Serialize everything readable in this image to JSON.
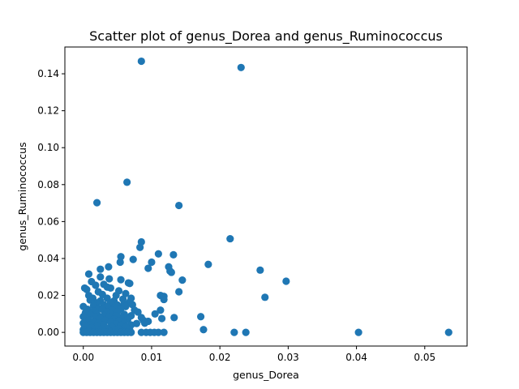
{
  "chart_data": {
    "type": "scatter",
    "title": "Scatter plot of genus_Dorea and genus_Ruminococcus",
    "xlabel": "genus_Dorea",
    "ylabel": "genus_Ruminococcus",
    "xlim": [
      -0.0027,
      0.0562
    ],
    "ylim": [
      -0.0074,
      0.1545
    ],
    "x_ticks": [
      0.0,
      0.01,
      0.02,
      0.03,
      0.04,
      0.05
    ],
    "x_tick_labels": [
      "0.00",
      "0.01",
      "0.02",
      "0.03",
      "0.04",
      "0.05"
    ],
    "y_ticks": [
      0.0,
      0.02,
      0.04,
      0.06,
      0.08,
      0.1,
      0.12,
      0.14
    ],
    "y_tick_labels": [
      "0.00",
      "0.02",
      "0.04",
      "0.06",
      "0.08",
      "0.10",
      "0.12",
      "0.14"
    ],
    "grid": false,
    "legend": "none",
    "marker_color": "#1f77b4",
    "points": [
      [
        0.0085,
        0.1468
      ],
      [
        0.0231,
        0.1434
      ],
      [
        0.0064,
        0.0813
      ],
      [
        0.002,
        0.0702
      ],
      [
        0.014,
        0.0687
      ],
      [
        0.0215,
        0.0507
      ],
      [
        0.0085,
        0.049
      ],
      [
        0.0083,
        0.046
      ],
      [
        0.011,
        0.0425
      ],
      [
        0.0132,
        0.042
      ],
      [
        0.0055,
        0.041
      ],
      [
        0.0073,
        0.0395
      ],
      [
        0.0054,
        0.038
      ],
      [
        0.01,
        0.038
      ],
      [
        0.0183,
        0.0368
      ],
      [
        0.0037,
        0.0355
      ],
      [
        0.0125,
        0.0355
      ],
      [
        0.0095,
        0.0347
      ],
      [
        0.0025,
        0.0342
      ],
      [
        0.0259,
        0.0337
      ],
      [
        0.0127,
        0.0332
      ],
      [
        0.0129,
        0.0325
      ],
      [
        0.0008,
        0.0316
      ],
      [
        0.0025,
        0.03
      ],
      [
        0.0038,
        0.029
      ],
      [
        0.0145,
        0.0283
      ],
      [
        0.0297,
        0.0277
      ],
      [
        0.0012,
        0.0275
      ],
      [
        0.0055,
        0.0285
      ],
      [
        0.0066,
        0.0268
      ],
      [
        0.0018,
        0.0255
      ],
      [
        0.003,
        0.026
      ],
      [
        0.0068,
        0.0265
      ],
      [
        0.0002,
        0.024
      ],
      [
        0.0035,
        0.0245
      ],
      [
        0.0005,
        0.0232
      ],
      [
        0.004,
        0.024
      ],
      [
        0.0052,
        0.0225
      ],
      [
        0.0022,
        0.022
      ],
      [
        0.0062,
        0.021
      ],
      [
        0.014,
        0.022
      ],
      [
        0.0113,
        0.02
      ],
      [
        0.0118,
        0.0195
      ],
      [
        0.0008,
        0.02
      ],
      [
        0.0028,
        0.0205
      ],
      [
        0.0048,
        0.02
      ],
      [
        0.0266,
        0.019
      ],
      [
        0.0014,
        0.0185
      ],
      [
        0.0035,
        0.0185
      ],
      [
        0.0058,
        0.018
      ],
      [
        0.007,
        0.0185
      ],
      [
        0.0118,
        0.0178
      ],
      [
        0.001,
        0.0175
      ],
      [
        0.0025,
        0.017
      ],
      [
        0.0045,
        0.017
      ],
      [
        0.0068,
        0.0165
      ],
      [
        0.002,
        0.016
      ],
      [
        0.004,
        0.016
      ],
      [
        0.006,
        0.0155
      ],
      [
        0.003,
        0.015
      ],
      [
        0.005,
        0.0148
      ],
      [
        0.0072,
        0.015
      ],
      [
        0.0015,
        0.0145
      ],
      [
        0.0035,
        0.014
      ],
      [
        0.0,
        0.014
      ],
      [
        0.0045,
        0.0135
      ],
      [
        0.0062,
        0.014
      ],
      [
        0.0022,
        0.013
      ],
      [
        0.0055,
        0.0128
      ],
      [
        0.0006,
        0.0125
      ],
      [
        0.0028,
        0.0125
      ],
      [
        0.0042,
        0.012
      ],
      [
        0.0113,
        0.012
      ],
      [
        0.0075,
        0.012
      ],
      [
        0.0015,
        0.0115
      ],
      [
        0.0035,
        0.011
      ],
      [
        0.005,
        0.0112
      ],
      [
        0.008,
        0.011
      ],
      [
        0.0003,
        0.0105
      ],
      [
        0.002,
        0.01
      ],
      [
        0.004,
        0.01
      ],
      [
        0.006,
        0.0098
      ],
      [
        0.0105,
        0.01
      ],
      [
        0.001,
        0.0095
      ],
      [
        0.003,
        0.0092
      ],
      [
        0.0048,
        0.009
      ],
      [
        0.007,
        0.009
      ],
      [
        0.0,
        0.0085
      ],
      [
        0.0018,
        0.0085
      ],
      [
        0.0038,
        0.0082
      ],
      [
        0.0055,
        0.008
      ],
      [
        0.0085,
        0.008
      ],
      [
        0.0133,
        0.008
      ],
      [
        0.0172,
        0.0085
      ],
      [
        0.0115,
        0.0075
      ],
      [
        0.0025,
        0.0075
      ],
      [
        0.0045,
        0.0072
      ],
      [
        0.0065,
        0.007
      ],
      [
        0.0008,
        0.0068
      ],
      [
        0.0032,
        0.0065
      ],
      [
        0.0052,
        0.0062
      ],
      [
        0.0088,
        0.0065
      ],
      [
        0.0095,
        0.006
      ],
      [
        0.0015,
        0.0058
      ],
      [
        0.004,
        0.0055
      ],
      [
        0.006,
        0.0052
      ],
      [
        0.0,
        0.005
      ],
      [
        0.0022,
        0.005
      ],
      [
        0.0048,
        0.0045
      ],
      [
        0.0078,
        0.0048
      ],
      [
        0.009,
        0.005
      ],
      [
        0.001,
        0.0042
      ],
      [
        0.003,
        0.004
      ],
      [
        0.0055,
        0.0038
      ],
      [
        0.007,
        0.004
      ],
      [
        0.0002,
        0.0035
      ],
      [
        0.002,
        0.0032
      ],
      [
        0.0042,
        0.003
      ],
      [
        0.0062,
        0.003
      ],
      [
        0.0012,
        0.0025
      ],
      [
        0.0035,
        0.0022
      ],
      [
        0.0052,
        0.002
      ],
      [
        0.0,
        0.0015
      ],
      [
        0.0025,
        0.0015
      ],
      [
        0.0045,
        0.0012
      ],
      [
        0.0068,
        0.0012
      ],
      [
        0.0176,
        0.0015
      ],
      [
        0.0008,
        0.0008
      ],
      [
        0.003,
        0.0008
      ],
      [
        0.0058,
        0.0006
      ],
      [
        0.0,
        0.0
      ],
      [
        0.0005,
        0.0
      ],
      [
        0.001,
        0.0
      ],
      [
        0.0015,
        0.0
      ],
      [
        0.002,
        0.0
      ],
      [
        0.0025,
        0.0
      ],
      [
        0.003,
        0.0
      ],
      [
        0.0035,
        0.0
      ],
      [
        0.004,
        0.0
      ],
      [
        0.0045,
        0.0
      ],
      [
        0.005,
        0.0
      ],
      [
        0.0055,
        0.0
      ],
      [
        0.006,
        0.0
      ],
      [
        0.0065,
        0.0
      ],
      [
        0.007,
        0.0
      ],
      [
        0.0085,
        0.0
      ],
      [
        0.0092,
        0.0
      ],
      [
        0.0098,
        0.0
      ],
      [
        0.0104,
        0.0
      ],
      [
        0.011,
        0.0
      ],
      [
        0.0118,
        0.0
      ],
      [
        0.0221,
        0.0
      ],
      [
        0.0238,
        0.0
      ],
      [
        0.0403,
        0.0
      ],
      [
        0.0535,
        0.0
      ]
    ]
  }
}
